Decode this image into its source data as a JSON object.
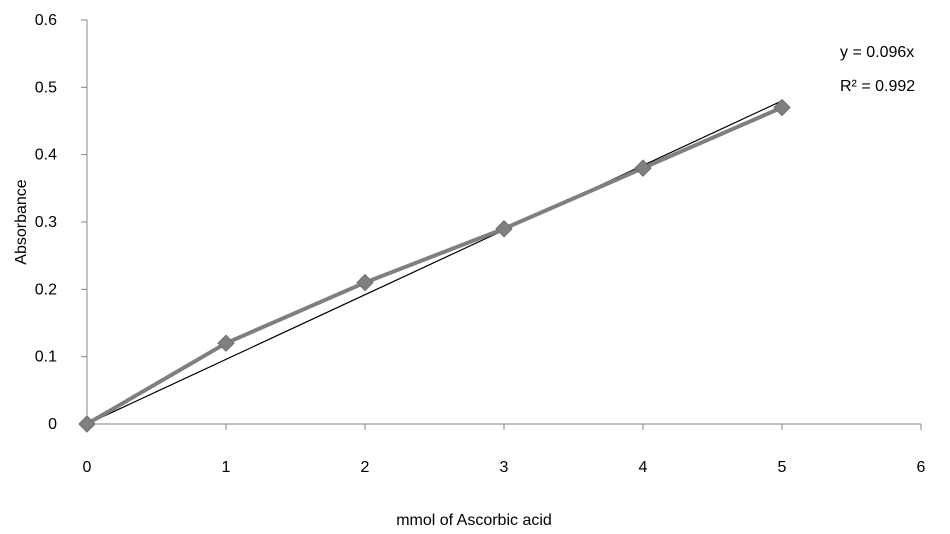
{
  "chart_data": {
    "type": "line",
    "title": "",
    "xlabel": "mmol of Ascorbic acid",
    "ylabel": "Absorbance",
    "xlim": [
      0,
      6
    ],
    "ylim": [
      0,
      0.6
    ],
    "x_ticks": [
      0,
      1,
      2,
      3,
      4,
      5,
      6
    ],
    "y_ticks": [
      0,
      0.1,
      0.2,
      0.3,
      0.4,
      0.5,
      0.6
    ],
    "x_tick_labels": [
      "0",
      "1",
      "2",
      "3",
      "4",
      "5",
      "6"
    ],
    "y_tick_labels": [
      "0",
      "0.1",
      "0.2",
      "0.3",
      "0.4",
      "0.5",
      "0.6"
    ],
    "grid": false,
    "legend": "none",
    "series": [
      {
        "x": [
          0,
          1,
          2,
          3,
          4,
          5
        ],
        "values": [
          0,
          0.12,
          0.21,
          0.29,
          0.38,
          0.47
        ],
        "marker": "diamond",
        "color": "#7f7f7f"
      }
    ],
    "trendline": {
      "type": "linear",
      "slope": 0.096,
      "intercept": 0,
      "equation": "y = 0.096x",
      "r_squared": "R² = 0.992",
      "color": "#000000"
    }
  }
}
